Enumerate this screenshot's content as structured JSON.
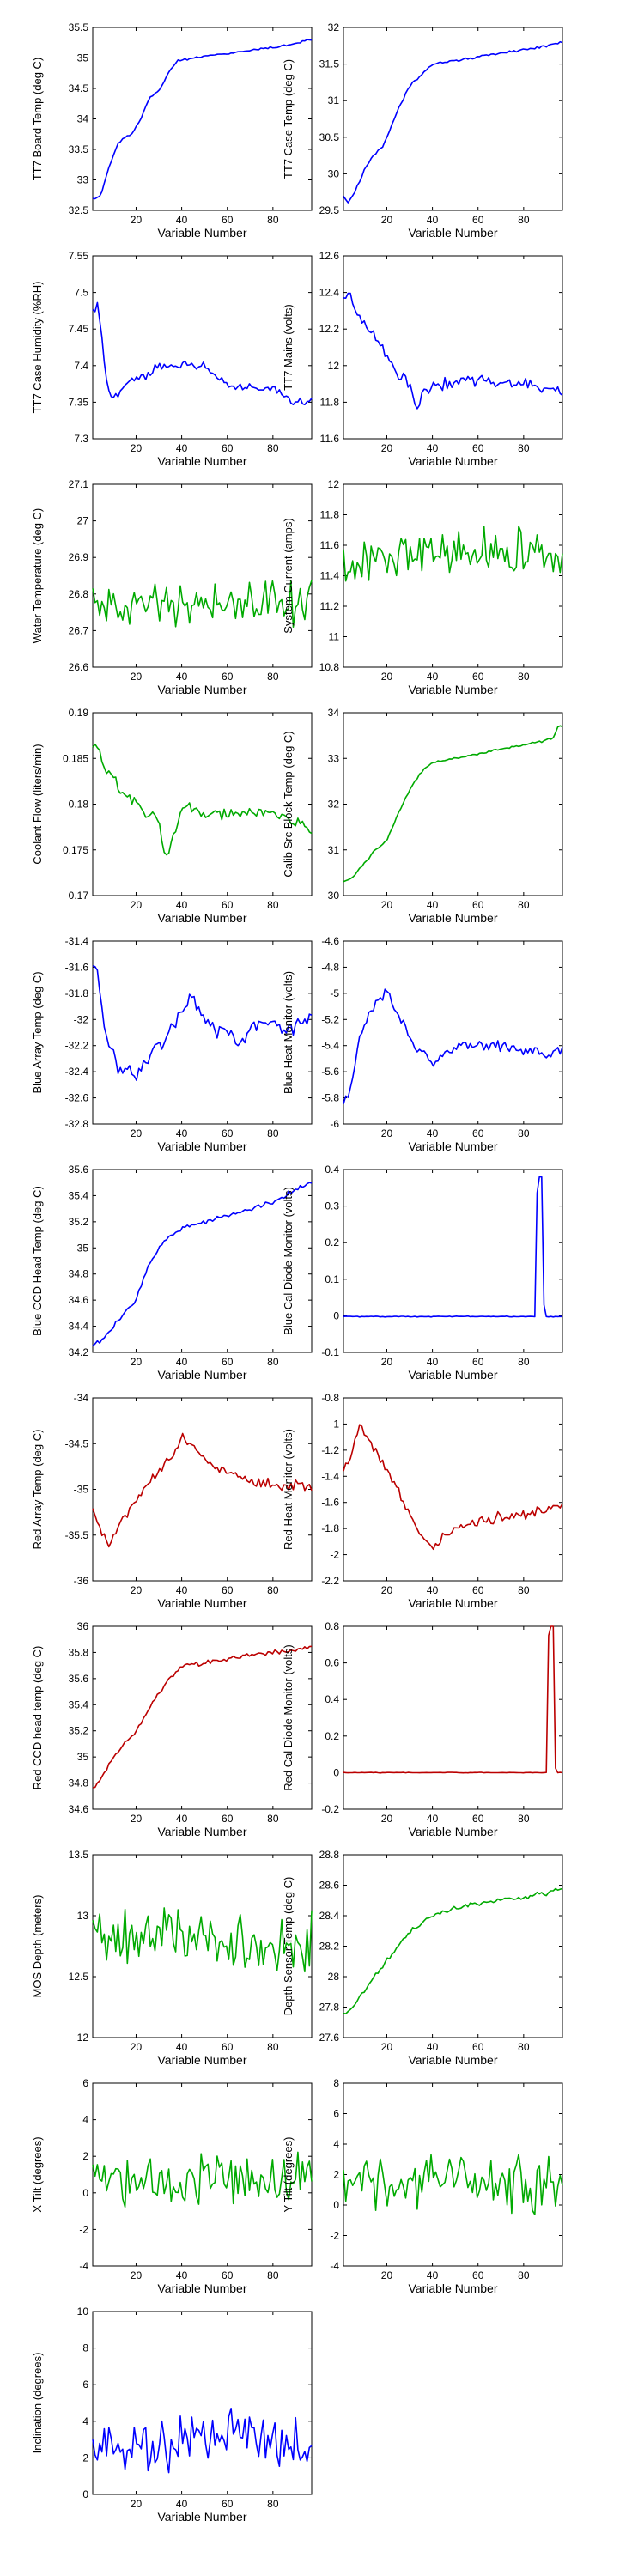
{
  "colors": {
    "blue": "#0000ff",
    "green": "#00aa00",
    "red": "#bb0000"
  },
  "chart_data": [
    {
      "type": "line",
      "xlabel": "Variable Number",
      "ylabel": "TT7 Board Temp (deg C)",
      "color": "blue",
      "xlim": [
        1,
        97
      ],
      "ylim": [
        32.5,
        35.5
      ],
      "xticks": [
        20,
        40,
        60,
        80
      ],
      "yticks": [
        "32.5",
        "33",
        "33.5",
        "34",
        "34.5",
        "35",
        "35.5"
      ],
      "kx": [
        1,
        3,
        5,
        8,
        12,
        15,
        18,
        22,
        26,
        30,
        34,
        38,
        45,
        55,
        65,
        75,
        85,
        92,
        95,
        97
      ],
      "ky": [
        32.7,
        32.7,
        32.8,
        33.2,
        33.6,
        33.7,
        33.75,
        34.0,
        34.35,
        34.45,
        34.75,
        34.95,
        35.0,
        35.05,
        35.1,
        35.15,
        35.2,
        35.25,
        35.3,
        35.3
      ],
      "noise": 0.02,
      "seed": 11
    },
    {
      "type": "line",
      "xlabel": "Variable Number",
      "ylabel": "TT7 Case Temp (deg C)",
      "color": "blue",
      "xlim": [
        1,
        97
      ],
      "ylim": [
        29.5,
        32
      ],
      "xticks": [
        20,
        40,
        60,
        80
      ],
      "yticks": [
        "29.5",
        "30",
        "30.5",
        "31",
        "31.5",
        "32"
      ],
      "kx": [
        1,
        3,
        6,
        10,
        14,
        18,
        22,
        26,
        30,
        35,
        40,
        50,
        60,
        70,
        80,
        90,
        97
      ],
      "ky": [
        29.7,
        29.6,
        29.75,
        30.05,
        30.25,
        30.35,
        30.65,
        30.95,
        31.2,
        31.35,
        31.5,
        31.55,
        31.6,
        31.65,
        31.7,
        31.75,
        31.8
      ],
      "noise": 0.02,
      "seed": 12
    },
    {
      "type": "line",
      "xlabel": "Variable Number",
      "ylabel": "TT7 Case Humidity (%RH)",
      "color": "blue",
      "xlim": [
        1,
        97
      ],
      "ylim": [
        7.3,
        7.55
      ],
      "xticks": [
        20,
        40,
        60,
        80
      ],
      "yticks": [
        "7.3",
        "7.35",
        "7.4",
        "7.45",
        "7.5",
        "7.55"
      ],
      "kx": [
        1,
        3,
        5,
        7,
        9,
        12,
        16,
        20,
        25,
        30,
        40,
        50,
        58,
        62,
        70,
        80,
        85,
        88,
        92,
        97
      ],
      "ky": [
        7.48,
        7.48,
        7.44,
        7.38,
        7.36,
        7.36,
        7.38,
        7.38,
        7.39,
        7.4,
        7.4,
        7.4,
        7.38,
        7.37,
        7.37,
        7.37,
        7.36,
        7.35,
        7.35,
        7.35
      ],
      "noise": 0.008,
      "seed": 13
    },
    {
      "type": "line",
      "xlabel": "Variable Number",
      "ylabel": "TT7 Mains  (volts)",
      "color": "blue",
      "xlim": [
        1,
        97
      ],
      "ylim": [
        11.6,
        12.6
      ],
      "xticks": [
        20,
        40,
        60,
        80
      ],
      "yticks": [
        "11.6",
        "11.8",
        "12",
        "12.2",
        "12.4",
        "12.6"
      ],
      "kx": [
        1,
        3,
        6,
        10,
        15,
        20,
        25,
        30,
        33,
        36,
        40,
        50,
        60,
        70,
        80,
        90,
        97
      ],
      "ky": [
        12.35,
        12.42,
        12.3,
        12.25,
        12.15,
        12.05,
        11.95,
        11.9,
        11.75,
        11.85,
        11.9,
        11.9,
        11.92,
        11.9,
        11.9,
        11.88,
        11.85
      ],
      "noise": 0.04,
      "seed": 14
    },
    {
      "type": "line",
      "xlabel": "Variable Number",
      "ylabel": "Water Temperature (deg C)",
      "color": "green",
      "xlim": [
        1,
        97
      ],
      "ylim": [
        26.6,
        27.1
      ],
      "xticks": [
        20,
        40,
        60,
        80
      ],
      "yticks": [
        "26.6",
        "26.7",
        "26.8",
        "26.9",
        "27",
        "27.1"
      ],
      "kx": [
        1,
        97
      ],
      "ky": [
        26.78,
        26.78
      ],
      "noise": 0.08,
      "seed": 15
    },
    {
      "type": "line",
      "xlabel": "Variable Number",
      "ylabel": "System Current (amps)",
      "color": "green",
      "xlim": [
        1,
        97
      ],
      "ylim": [
        10.8,
        12
      ],
      "xticks": [
        20,
        40,
        60,
        80
      ],
      "yticks": [
        "10.8",
        "11",
        "11.2",
        "11.4",
        "11.6",
        "11.8",
        "12"
      ],
      "kx": [
        1,
        20,
        40,
        60,
        80,
        97
      ],
      "ky": [
        11.5,
        11.5,
        11.55,
        11.55,
        11.55,
        11.6
      ],
      "noise": 0.2,
      "seed": 16
    },
    {
      "type": "line",
      "xlabel": "Variable Number",
      "ylabel": "Coolant Flow (liters/min)",
      "color": "green",
      "xlim": [
        1,
        97
      ],
      "ylim": [
        0.17,
        0.19
      ],
      "xticks": [
        20,
        40,
        60,
        80
      ],
      "yticks": [
        "0.17",
        "0.175",
        "0.18",
        "0.185",
        "0.19"
      ],
      "kx": [
        1,
        3,
        6,
        10,
        15,
        20,
        25,
        30,
        33,
        38,
        42,
        50,
        60,
        70,
        80,
        90,
        97
      ],
      "ky": [
        0.186,
        0.186,
        0.184,
        0.183,
        0.181,
        0.18,
        0.179,
        0.178,
        0.174,
        0.178,
        0.18,
        0.179,
        0.179,
        0.179,
        0.179,
        0.178,
        0.177
      ],
      "noise": 0.0008,
      "seed": 17
    },
    {
      "type": "line",
      "xlabel": "Variable Number",
      "ylabel": "Calib Src Block Temp (deg C)",
      "color": "green",
      "xlim": [
        1,
        97
      ],
      "ylim": [
        30,
        34
      ],
      "xticks": [
        20,
        40,
        60,
        80
      ],
      "yticks": [
        "30",
        "31",
        "32",
        "33",
        "34"
      ],
      "kx": [
        1,
        5,
        10,
        15,
        20,
        25,
        30,
        35,
        40,
        50,
        60,
        70,
        80,
        90,
        93,
        95,
        97
      ],
      "ky": [
        30.3,
        30.4,
        30.7,
        31.0,
        31.2,
        31.8,
        32.3,
        32.7,
        32.9,
        33.0,
        33.1,
        33.2,
        33.3,
        33.4,
        33.45,
        33.7,
        33.7
      ],
      "noise": 0.03,
      "seed": 18
    },
    {
      "type": "line",
      "xlabel": "Variable Number",
      "ylabel": "Blue Array Temp (deg C)",
      "color": "blue",
      "xlim": [
        1,
        97
      ],
      "ylim": [
        -32.8,
        -31.4
      ],
      "xticks": [
        20,
        40,
        60,
        80
      ],
      "yticks": [
        "-32.8",
        "-32.6",
        "-32.4",
        "-32.2",
        "-32",
        "-31.8",
        "-31.6",
        "-31.4"
      ],
      "kx": [
        1,
        3,
        5,
        8,
        12,
        16,
        20,
        25,
        30,
        35,
        40,
        45,
        50,
        55,
        60,
        65,
        70,
        75,
        80,
        85,
        90,
        97
      ],
      "ky": [
        -31.6,
        -31.65,
        -31.9,
        -32.2,
        -32.35,
        -32.4,
        -32.45,
        -32.3,
        -32.2,
        -32.1,
        -31.95,
        -31.8,
        -32.0,
        -32.1,
        -32.1,
        -32.2,
        -32.05,
        -32.05,
        -32.0,
        -32.1,
        -32.05,
        -31.95
      ],
      "noise": 0.07,
      "seed": 19
    },
    {
      "type": "line",
      "xlabel": "Variable Number",
      "ylabel": "Blue Heat Monitor (volts)",
      "color": "blue",
      "xlim": [
        1,
        97
      ],
      "ylim": [
        -6,
        -4.6
      ],
      "xticks": [
        20,
        40,
        60,
        80
      ],
      "yticks": [
        "-6",
        "-5.8",
        "-5.6",
        "-5.4",
        "-5.2",
        "-5",
        "-4.8",
        "-4.6"
      ],
      "kx": [
        1,
        3,
        5,
        8,
        12,
        16,
        20,
        25,
        30,
        35,
        40,
        45,
        50,
        60,
        70,
        80,
        90,
        97
      ],
      "ky": [
        -5.85,
        -5.8,
        -5.65,
        -5.35,
        -5.15,
        -5.05,
        -5.0,
        -5.15,
        -5.35,
        -5.45,
        -5.55,
        -5.45,
        -5.4,
        -5.4,
        -5.4,
        -5.45,
        -5.45,
        -5.45
      ],
      "noise": 0.05,
      "seed": 20
    },
    {
      "type": "line",
      "xlabel": "Variable Number",
      "ylabel": "Blue CCD Head Temp (deg C)",
      "color": "blue",
      "xlim": [
        1,
        97
      ],
      "ylim": [
        34.2,
        35.6
      ],
      "xticks": [
        20,
        40,
        60,
        80
      ],
      "yticks": [
        "34.2",
        "34.4",
        "34.6",
        "34.8",
        "35",
        "35.2",
        "35.4",
        "35.6"
      ],
      "kx": [
        1,
        5,
        10,
        15,
        20,
        25,
        30,
        35,
        40,
        50,
        60,
        70,
        80,
        90,
        97
      ],
      "ky": [
        34.25,
        34.3,
        34.4,
        34.5,
        34.6,
        34.85,
        35.0,
        35.1,
        35.15,
        35.2,
        35.25,
        35.3,
        35.35,
        35.45,
        35.5
      ],
      "noise": 0.02,
      "seed": 21
    },
    {
      "type": "line",
      "xlabel": "Variable Number",
      "ylabel": "Blue Cal Diode Monitor (volts)",
      "color": "blue",
      "xlim": [
        1,
        97
      ],
      "ylim": [
        -0.1,
        0.4
      ],
      "xticks": [
        20,
        40,
        60,
        80
      ],
      "yticks": [
        "-0.1",
        "0",
        "0.1",
        "0.2",
        "0.3",
        "0.4"
      ],
      "kx": [
        1,
        85,
        86,
        88,
        89,
        97
      ],
      "ky": [
        -0.002,
        -0.002,
        0.38,
        0.38,
        -0.002,
        -0.002
      ],
      "noise": 0.0015,
      "seed": 22
    },
    {
      "type": "line",
      "xlabel": "Variable Number",
      "ylabel": "Red Array Temp (deg C)",
      "color": "red",
      "xlim": [
        1,
        97
      ],
      "ylim": [
        -36,
        -34
      ],
      "xticks": [
        20,
        40,
        60,
        80
      ],
      "yticks": [
        "-36",
        "-35.5",
        "-35",
        "-34.5",
        "-34"
      ],
      "kx": [
        1,
        5,
        8,
        12,
        16,
        20,
        25,
        30,
        35,
        40,
        45,
        50,
        60,
        70,
        80,
        90,
        97
      ],
      "ky": [
        -35.2,
        -35.5,
        -35.6,
        -35.4,
        -35.3,
        -35.1,
        -34.95,
        -34.8,
        -34.65,
        -34.45,
        -34.5,
        -34.7,
        -34.8,
        -34.9,
        -34.95,
        -34.95,
        -35.0
      ],
      "noise": 0.07,
      "seed": 23
    },
    {
      "type": "line",
      "xlabel": "Variable Number",
      "ylabel": "Red Heat Monitor (volts)",
      "color": "red",
      "xlim": [
        1,
        97
      ],
      "ylim": [
        -2.2,
        -0.8
      ],
      "xticks": [
        20,
        40,
        60,
        80
      ],
      "yticks": [
        "-2.2",
        "-2",
        "-1.8",
        "-1.6",
        "-1.4",
        "-1.2",
        "-1",
        "-0.8"
      ],
      "kx": [
        1,
        5,
        8,
        12,
        16,
        20,
        25,
        30,
        35,
        40,
        45,
        50,
        60,
        70,
        80,
        90,
        97
      ],
      "ky": [
        -1.35,
        -1.2,
        -1.0,
        -1.1,
        -1.25,
        -1.35,
        -1.5,
        -1.7,
        -1.85,
        -1.95,
        -1.85,
        -1.8,
        -1.75,
        -1.7,
        -1.7,
        -1.65,
        -1.6
      ],
      "noise": 0.05,
      "seed": 24
    },
    {
      "type": "line",
      "xlabel": "Variable Number",
      "ylabel": "Red CCD head temp (deg C)",
      "color": "red",
      "xlim": [
        1,
        97
      ],
      "ylim": [
        34.6,
        36
      ],
      "xticks": [
        20,
        40,
        60,
        80
      ],
      "yticks": [
        "34.6",
        "34.8",
        "35",
        "35.2",
        "35.4",
        "35.6",
        "35.8",
        "36"
      ],
      "kx": [
        1,
        5,
        10,
        15,
        20,
        25,
        30,
        35,
        40,
        50,
        60,
        70,
        80,
        90,
        97
      ],
      "ky": [
        34.75,
        34.85,
        35.0,
        35.1,
        35.2,
        35.35,
        35.5,
        35.6,
        35.7,
        35.72,
        35.75,
        35.78,
        35.8,
        35.82,
        35.85
      ],
      "noise": 0.02,
      "seed": 25
    },
    {
      "type": "line",
      "xlabel": "Variable Number",
      "ylabel": "Red Cal Diode Monitor (volts)",
      "color": "red",
      "xlim": [
        1,
        97
      ],
      "ylim": [
        -0.2,
        0.8
      ],
      "xticks": [
        20,
        40,
        60,
        80
      ],
      "yticks": [
        "-0.2",
        "0",
        "0.2",
        "0.4",
        "0.6",
        "0.8"
      ],
      "kx": [
        1,
        90,
        91,
        93,
        94,
        97
      ],
      "ky": [
        0,
        0,
        0.8,
        0.8,
        0,
        0
      ],
      "noise": 0.002,
      "seed": 26
    },
    {
      "type": "line",
      "xlabel": "Variable Number",
      "ylabel": "MOS Depth  (meters)",
      "color": "green",
      "xlim": [
        1,
        97
      ],
      "ylim": [
        12,
        13.5
      ],
      "xticks": [
        20,
        40,
        60,
        80
      ],
      "yticks": [
        "12",
        "12.5",
        "13",
        "13.5"
      ],
      "kx": [
        1,
        20,
        40,
        60,
        80,
        97
      ],
      "ky": [
        12.8,
        12.8,
        12.9,
        12.75,
        12.75,
        12.8
      ],
      "noise": 0.28,
      "seed": 27
    },
    {
      "type": "line",
      "xlabel": "Variable Number",
      "ylabel": "Depth Sensor Temp (deg C)",
      "color": "green",
      "xlim": [
        1,
        97
      ],
      "ylim": [
        27.6,
        28.8
      ],
      "xticks": [
        20,
        40,
        60,
        80
      ],
      "yticks": [
        "27.6",
        "27.8",
        "28",
        "28.2",
        "28.4",
        "28.6",
        "28.8"
      ],
      "kx": [
        1,
        5,
        10,
        15,
        20,
        25,
        30,
        35,
        40,
        50,
        60,
        70,
        80,
        90,
        97
      ],
      "ky": [
        27.75,
        27.8,
        27.9,
        28.0,
        28.1,
        28.2,
        28.3,
        28.35,
        28.4,
        28.45,
        28.48,
        28.5,
        28.52,
        28.55,
        28.58
      ],
      "noise": 0.02,
      "seed": 28
    },
    {
      "type": "line",
      "xlabel": "Variable Number",
      "ylabel": "X Tilt  (degrees)",
      "color": "green",
      "xlim": [
        1,
        97
      ],
      "ylim": [
        -4,
        6
      ],
      "xticks": [
        20,
        40,
        60,
        80
      ],
      "yticks": [
        "-4",
        "-2",
        "0",
        "2",
        "4",
        "6"
      ],
      "kx": [
        1,
        97
      ],
      "ky": [
        0.8,
        0.8
      ],
      "noise": 1.7,
      "seed": 29
    },
    {
      "type": "line",
      "xlabel": "Variable Number",
      "ylabel": "Y Tilt  (degrees)",
      "color": "green",
      "xlim": [
        1,
        97
      ],
      "ylim": [
        -4,
        8
      ],
      "xticks": [
        20,
        40,
        60,
        80
      ],
      "yticks": [
        "-4",
        "-2",
        "0",
        "2",
        "4",
        "6",
        "8"
      ],
      "kx": [
        1,
        97
      ],
      "ky": [
        1.5,
        1.5
      ],
      "noise": 2.2,
      "seed": 30
    },
    {
      "type": "line",
      "xlabel": "Variable Number",
      "ylabel": "Inclination  (degrees)",
      "color": "blue",
      "xlim": [
        1,
        97
      ],
      "ylim": [
        0,
        10
      ],
      "xticks": [
        20,
        40,
        60,
        80
      ],
      "yticks": [
        "0",
        "2",
        "4",
        "6",
        "8",
        "10"
      ],
      "kx": [
        1,
        10,
        20,
        30,
        40,
        50,
        60,
        70,
        80,
        90,
        97
      ],
      "ky": [
        2.5,
        2.5,
        2.8,
        2.5,
        3.0,
        3.2,
        3.5,
        3.2,
        3.0,
        3.0,
        2.8
      ],
      "noise": 1.7,
      "seed": 31
    }
  ]
}
